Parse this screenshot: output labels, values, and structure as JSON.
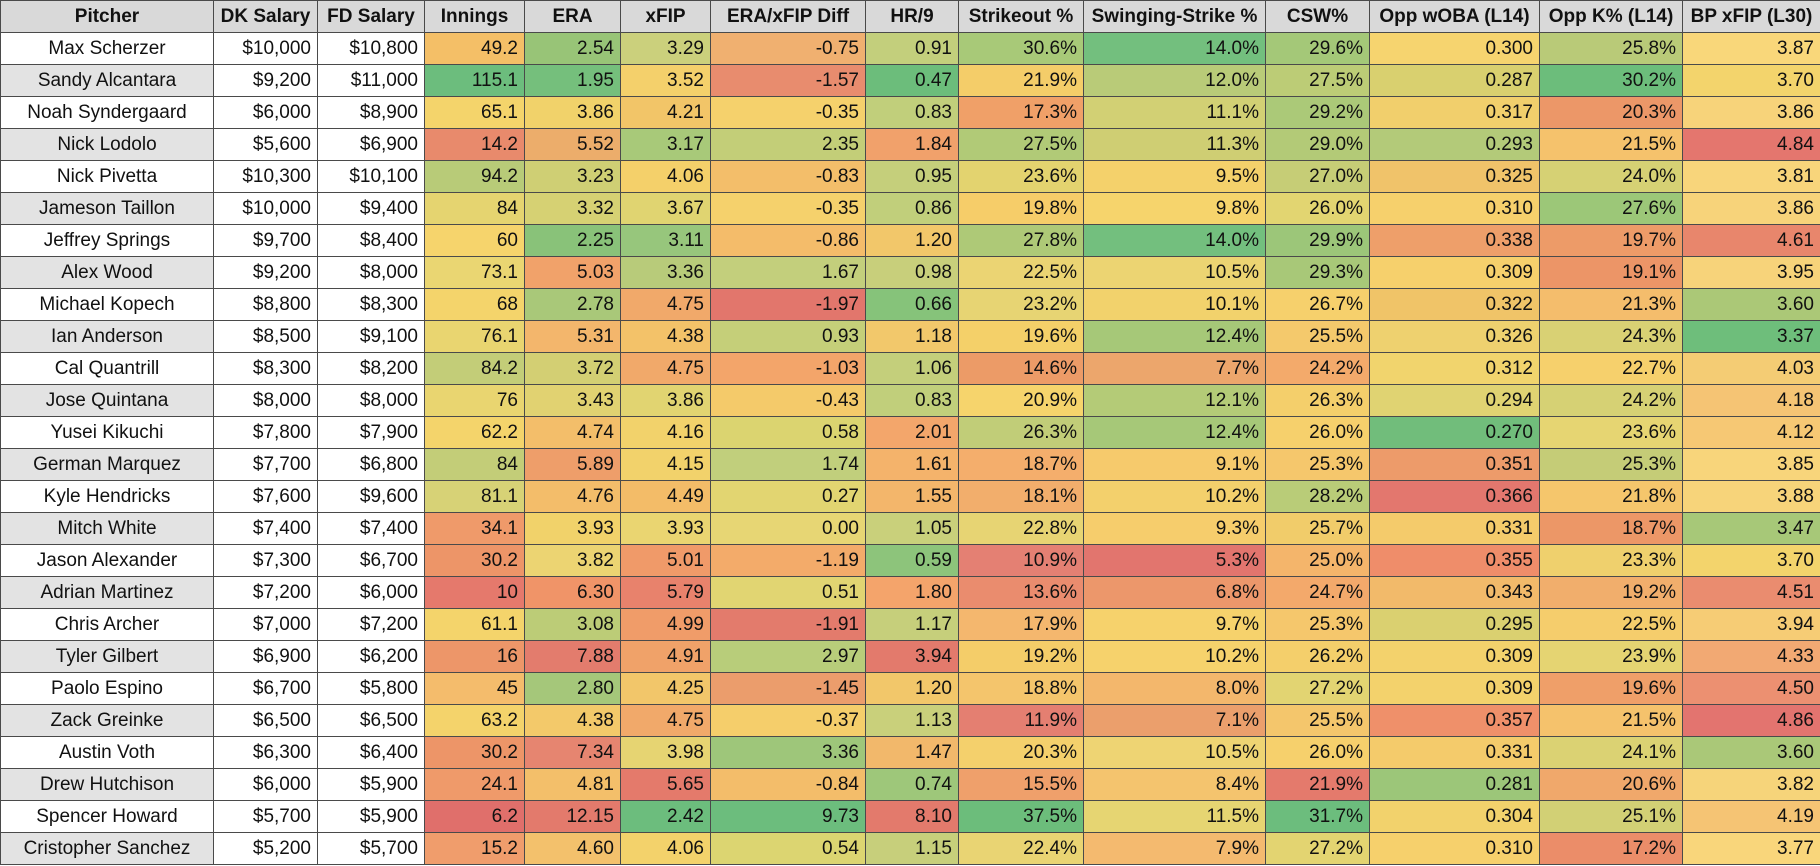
{
  "table": {
    "headers": [
      "Pitcher",
      "DK Salary",
      "FD Salary",
      "Innings",
      "ERA",
      "xFIP",
      "ERA/xFIP Diff",
      "HR/9",
      "Strikeout %",
      "Swinging-Strike %",
      "CSW%",
      "Opp wOBA (L14)",
      "Opp K% (L14)",
      "BP xFIP (L30)"
    ],
    "name_shading": [
      "#ffffff",
      "#e3e3e3"
    ],
    "rows": [
      [
        "Max Scherzer",
        "$10,000",
        "$10,800",
        "49.2",
        "2.54",
        "3.29",
        "-0.75",
        "0.91",
        "30.6%",
        "14.0%",
        "29.6%",
        "0.300",
        "25.8%",
        "3.87"
      ],
      [
        "Sandy Alcantara",
        "$9,200",
        "$11,000",
        "115.1",
        "1.95",
        "3.52",
        "-1.57",
        "0.47",
        "21.9%",
        "12.0%",
        "27.5%",
        "0.287",
        "30.2%",
        "3.70"
      ],
      [
        "Noah Syndergaard",
        "$6,000",
        "$8,900",
        "65.1",
        "3.86",
        "4.21",
        "-0.35",
        "0.83",
        "17.3%",
        "11.1%",
        "29.2%",
        "0.317",
        "20.3%",
        "3.86"
      ],
      [
        "Nick Lodolo",
        "$5,600",
        "$6,900",
        "14.2",
        "5.52",
        "3.17",
        "2.35",
        "1.84",
        "27.5%",
        "11.3%",
        "29.0%",
        "0.293",
        "21.5%",
        "4.84"
      ],
      [
        "Nick Pivetta",
        "$10,300",
        "$10,100",
        "94.2",
        "3.23",
        "4.06",
        "-0.83",
        "0.95",
        "23.6%",
        "9.5%",
        "27.0%",
        "0.325",
        "24.0%",
        "3.81"
      ],
      [
        "Jameson Taillon",
        "$10,000",
        "$9,400",
        "84",
        "3.32",
        "3.67",
        "-0.35",
        "0.86",
        "19.8%",
        "9.8%",
        "26.0%",
        "0.310",
        "27.6%",
        "3.86"
      ],
      [
        "Jeffrey Springs",
        "$9,700",
        "$8,400",
        "60",
        "2.25",
        "3.11",
        "-0.86",
        "1.20",
        "27.8%",
        "14.0%",
        "29.9%",
        "0.338",
        "19.7%",
        "4.61"
      ],
      [
        "Alex Wood",
        "$9,200",
        "$8,000",
        "73.1",
        "5.03",
        "3.36",
        "1.67",
        "0.98",
        "22.5%",
        "10.5%",
        "29.3%",
        "0.309",
        "19.1%",
        "3.95"
      ],
      [
        "Michael Kopech",
        "$8,800",
        "$8,300",
        "68",
        "2.78",
        "4.75",
        "-1.97",
        "0.66",
        "23.2%",
        "10.1%",
        "26.7%",
        "0.322",
        "21.3%",
        "3.60"
      ],
      [
        "Ian Anderson",
        "$8,500",
        "$9,100",
        "76.1",
        "5.31",
        "4.38",
        "0.93",
        "1.18",
        "19.6%",
        "12.4%",
        "25.5%",
        "0.326",
        "24.3%",
        "3.37"
      ],
      [
        "Cal Quantrill",
        "$8,300",
        "$8,200",
        "84.2",
        "3.72",
        "4.75",
        "-1.03",
        "1.06",
        "14.6%",
        "7.7%",
        "24.2%",
        "0.312",
        "22.7%",
        "4.03"
      ],
      [
        "Jose Quintana",
        "$8,000",
        "$8,000",
        "76",
        "3.43",
        "3.86",
        "-0.43",
        "0.83",
        "20.9%",
        "12.1%",
        "26.3%",
        "0.294",
        "24.2%",
        "4.18"
      ],
      [
        "Yusei Kikuchi",
        "$7,800",
        "$7,900",
        "62.2",
        "4.74",
        "4.16",
        "0.58",
        "2.01",
        "26.3%",
        "12.4%",
        "26.0%",
        "0.270",
        "23.6%",
        "4.12"
      ],
      [
        "German Marquez",
        "$7,700",
        "$6,800",
        "84",
        "5.89",
        "4.15",
        "1.74",
        "1.61",
        "18.7%",
        "9.1%",
        "25.3%",
        "0.351",
        "25.3%",
        "3.85"
      ],
      [
        "Kyle Hendricks",
        "$7,600",
        "$9,600",
        "81.1",
        "4.76",
        "4.49",
        "0.27",
        "1.55",
        "18.1%",
        "10.2%",
        "28.2%",
        "0.366",
        "21.8%",
        "3.88"
      ],
      [
        "Mitch White",
        "$7,400",
        "$7,400",
        "34.1",
        "3.93",
        "3.93",
        "0.00",
        "1.05",
        "22.8%",
        "9.3%",
        "25.7%",
        "0.331",
        "18.7%",
        "3.47"
      ],
      [
        "Jason Alexander",
        "$7,300",
        "$6,700",
        "30.2",
        "3.82",
        "5.01",
        "-1.19",
        "0.59",
        "10.9%",
        "5.3%",
        "25.0%",
        "0.355",
        "23.3%",
        "3.70"
      ],
      [
        "Adrian Martinez",
        "$7,200",
        "$6,000",
        "10",
        "6.30",
        "5.79",
        "0.51",
        "1.80",
        "13.6%",
        "6.8%",
        "24.7%",
        "0.343",
        "19.2%",
        "4.51"
      ],
      [
        "Chris Archer",
        "$7,000",
        "$7,200",
        "61.1",
        "3.08",
        "4.99",
        "-1.91",
        "1.17",
        "17.9%",
        "9.7%",
        "25.3%",
        "0.295",
        "22.5%",
        "3.94"
      ],
      [
        "Tyler Gilbert",
        "$6,900",
        "$6,200",
        "16",
        "7.88",
        "4.91",
        "2.97",
        "3.94",
        "19.2%",
        "10.2%",
        "26.2%",
        "0.309",
        "23.9%",
        "4.33"
      ],
      [
        "Paolo Espino",
        "$6,700",
        "$5,800",
        "45",
        "2.80",
        "4.25",
        "-1.45",
        "1.20",
        "18.8%",
        "8.0%",
        "27.2%",
        "0.309",
        "19.6%",
        "4.50"
      ],
      [
        "Zack Greinke",
        "$6,500",
        "$6,500",
        "63.2",
        "4.38",
        "4.75",
        "-0.37",
        "1.13",
        "11.9%",
        "7.1%",
        "25.5%",
        "0.357",
        "21.5%",
        "4.86"
      ],
      [
        "Austin Voth",
        "$6,300",
        "$6,400",
        "30.2",
        "7.34",
        "3.98",
        "3.36",
        "1.47",
        "20.3%",
        "10.5%",
        "26.0%",
        "0.331",
        "24.1%",
        "3.60"
      ],
      [
        "Drew Hutchison",
        "$6,000",
        "$5,900",
        "24.1",
        "4.81",
        "5.65",
        "-0.84",
        "0.74",
        "15.5%",
        "8.4%",
        "21.9%",
        "0.281",
        "20.6%",
        "3.82"
      ],
      [
        "Spencer Howard",
        "$5,700",
        "$5,900",
        "6.2",
        "12.15",
        "2.42",
        "9.73",
        "8.10",
        "37.5%",
        "11.5%",
        "31.7%",
        "0.304",
        "25.1%",
        "4.19"
      ],
      [
        "Cristopher Sanchez",
        "$5,200",
        "$5,700",
        "15.2",
        "4.60",
        "4.06",
        "0.54",
        "1.15",
        "22.4%",
        "7.9%",
        "27.2%",
        "0.310",
        "17.2%",
        "3.77"
      ]
    ],
    "colors": [
      [
        "#ffffff",
        "#ffffff",
        "#ffffff",
        "#f4bf67",
        "#98c477",
        "#cbd07c",
        "#f0b070",
        "#c3cf7c",
        "#a8c978",
        "#73bf7e",
        "#a4c878",
        "#f6d46f",
        "#b9ca78",
        "#f9d77a"
      ],
      [
        "#e3e3e3",
        "#ffffff",
        "#ffffff",
        "#6cbd7d",
        "#75bf7c",
        "#f4d06b",
        "#e88c6e",
        "#6cbd7b",
        "#f4cd69",
        "#b9cb78",
        "#bccc76",
        "#d9d06f",
        "#6cbd7b",
        "#f3d46c"
      ],
      [
        "#ffffff",
        "#ffffff",
        "#ffffff",
        "#f4d46b",
        "#f1d26a",
        "#f2c568",
        "#f5d16c",
        "#c1cf7b",
        "#f0a068",
        "#d2d074",
        "#abc978",
        "#f1cf6c",
        "#ec9768",
        "#f7d37a"
      ],
      [
        "#e3e3e3",
        "#ffffff",
        "#ffffff",
        "#e88a6c",
        "#ecad6b",
        "#a8c979",
        "#c3ce78",
        "#f1a16b",
        "#b1ca77",
        "#cfce73",
        "#b3ca77",
        "#b3ca79",
        "#f5c26c",
        "#e4766e"
      ],
      [
        "#ffffff",
        "#ffffff",
        "#ffffff",
        "#b8cb78",
        "#cfcf74",
        "#f4d06a",
        "#f3be6a",
        "#c5cf7b",
        "#e3d36f",
        "#f4d16b",
        "#c6cd76",
        "#f0c36a",
        "#d6d174",
        "#f8d57b"
      ],
      [
        "#e3e3e3",
        "#ffffff",
        "#ffffff",
        "#e5d470",
        "#d6d173",
        "#e0d471",
        "#f5d16c",
        "#c1cf7b",
        "#f6cd69",
        "#f6d46c",
        "#e2d571",
        "#f6d06c",
        "#9cc778",
        "#f7d37a"
      ],
      [
        "#ffffff",
        "#ffffff",
        "#ffffff",
        "#f6d46c",
        "#89c279",
        "#97c67c",
        "#f4bc6a",
        "#f2c76a",
        "#aec977",
        "#73bf7e",
        "#9cc679",
        "#ee9f6a",
        "#ed9b68",
        "#e8866c"
      ],
      [
        "#e3e3e3",
        "#ffffff",
        "#ffffff",
        "#ead672",
        "#f1a26a",
        "#b8cb7a",
        "#c3cf7c",
        "#c8cf7b",
        "#ebd473",
        "#ecd472",
        "#a8c878",
        "#f6d06c",
        "#ec9567",
        "#f7d37a"
      ],
      [
        "#ffffff",
        "#ffffff",
        "#ffffff",
        "#f4d46b",
        "#a9c879",
        "#f1a96a",
        "#e2766c",
        "#86c37a",
        "#e7d473",
        "#f2d26c",
        "#f6d06c",
        "#f0c468",
        "#f4bd6c",
        "#abc877"
      ],
      [
        "#e3e3e3",
        "#ffffff",
        "#ffffff",
        "#e9d570",
        "#f3b66c",
        "#f3c269",
        "#c5cf79",
        "#f2c86b",
        "#f4d069",
        "#a6c878",
        "#f4c96c",
        "#eed16f",
        "#d9d174",
        "#6ebe7b"
      ],
      [
        "#ffffff",
        "#ffffff",
        "#ffffff",
        "#c3cd78",
        "#d3cf73",
        "#f1a96a",
        "#f3a56a",
        "#c4cf7b",
        "#ec9b67",
        "#eca66c",
        "#f3aa6b",
        "#f1d46d",
        "#f6d06c",
        "#f4cc74"
      ],
      [
        "#e3e3e3",
        "#ffffff",
        "#ffffff",
        "#e9d570",
        "#e1d271",
        "#e1d471",
        "#f4ca6a",
        "#c1cf7b",
        "#f6d46c",
        "#b4cb77",
        "#f4cf6b",
        "#e0d372",
        "#d6d174",
        "#f5c474"
      ],
      [
        "#ffffff",
        "#ffffff",
        "#ffffff",
        "#f4d46b",
        "#f3be6a",
        "#f2d26b",
        "#dbd470",
        "#f3a66b",
        "#c1cd78",
        "#a6c878",
        "#f6d06c",
        "#71bd7b",
        "#e6d572",
        "#f6c874"
      ],
      [
        "#e3e3e3",
        "#ffffff",
        "#ffffff",
        "#c3cd78",
        "#ee9e6a",
        "#f2d26b",
        "#c1cf7c",
        "#f4b36b",
        "#f4ae6c",
        "#f6ca6c",
        "#f5c76c",
        "#ed9b6a",
        "#c5cc77",
        "#f8d57b"
      ],
      [
        "#ffffff",
        "#ffffff",
        "#ffffff",
        "#d7d276",
        "#f3bd6a",
        "#f3bc68",
        "#e2d571",
        "#f3b66b",
        "#f2ae6c",
        "#f3d06c",
        "#b9cc78",
        "#e3776e",
        "#f5c66c",
        "#f7d47a"
      ],
      [
        "#e3e3e3",
        "#ffffff",
        "#ffffff",
        "#ef9a6a",
        "#f1d26a",
        "#ead571",
        "#e7d674",
        "#c9d07b",
        "#e7d473",
        "#f6cd6c",
        "#f1cc6a",
        "#f4cb6b",
        "#ec9767",
        "#a7c878"
      ],
      [
        "#ffffff",
        "#ffffff",
        "#ffffff",
        "#ed9568",
        "#ecd472",
        "#f09a69",
        "#f3ab6a",
        "#8dc47b",
        "#e48073",
        "#e2756e",
        "#f4b56b",
        "#ef8d6a",
        "#efd06d",
        "#f3d46c"
      ],
      [
        "#e3e3e3",
        "#ffffff",
        "#ffffff",
        "#e5796c",
        "#f09468",
        "#e8826c",
        "#e1d572",
        "#f4a46b",
        "#ea8c6e",
        "#ec976b",
        "#f3a96b",
        "#f2ba6a",
        "#f1ae6c",
        "#ea8c6f"
      ],
      [
        "#ffffff",
        "#ffffff",
        "#ffffff",
        "#f4d46b",
        "#bccc77",
        "#f09c69",
        "#e37b6c",
        "#c6cf7b",
        "#f4b76e",
        "#f6d26c",
        "#f5c76c",
        "#dad070",
        "#f5cd6c",
        "#f6cc75"
      ],
      [
        "#e3e3e3",
        "#ffffff",
        "#ffffff",
        "#ed9669",
        "#e37c6d",
        "#f0a269",
        "#b8cd7a",
        "#e37a6c",
        "#f4cd69",
        "#f6d26c",
        "#f4cf6b",
        "#f3d26c",
        "#e5d472",
        "#f2a973"
      ],
      [
        "#ffffff",
        "#ffffff",
        "#ffffff",
        "#f4bc6c",
        "#a5c77a",
        "#f2c66a",
        "#eb9d6c",
        "#f2c76a",
        "#f4c56c",
        "#f3b76c",
        "#e2d472",
        "#f3d26c",
        "#ef9f69",
        "#ec9071"
      ],
      [
        "#e3e3e3",
        "#ffffff",
        "#ffffff",
        "#f4d36b",
        "#f3c96a",
        "#f1a96a",
        "#f5ce6b",
        "#c9d07b",
        "#e47f71",
        "#eb9f6c",
        "#f4c66c",
        "#ef906a",
        "#f5c26c",
        "#e3746f"
      ],
      [
        "#ffffff",
        "#ffffff",
        "#ffffff",
        "#ed9568",
        "#e68570",
        "#e6d472",
        "#9ec67a",
        "#f2b86b",
        "#f4d06c",
        "#eed473",
        "#f6d06c",
        "#f4cb6b",
        "#dbd273",
        "#aac878"
      ],
      [
        "#e3e3e3",
        "#ffffff",
        "#ffffff",
        "#ef9a6a",
        "#f3bf6a",
        "#e47a6b",
        "#f3bd6a",
        "#9ec77a",
        "#efa06b",
        "#f4c46e",
        "#e47a6c",
        "#9cc679",
        "#f0a86b",
        "#f6d47a"
      ],
      [
        "#ffffff",
        "#ffffff",
        "#ffffff",
        "#e06f6b",
        "#e37a6c",
        "#6cbd7d",
        "#6cbd7d",
        "#e37a6c",
        "#6cbd7b",
        "#e6d572",
        "#6cbd7d",
        "#f2d26c",
        "#d2d075",
        "#f5c474"
      ],
      [
        "#e3e3e3",
        "#ffffff",
        "#ffffff",
        "#f09d6c",
        "#f3c16c",
        "#f3d26b",
        "#dcd571",
        "#c7cf7b",
        "#e9d473",
        "#f4ba6f",
        "#e3d471",
        "#f6d06c",
        "#eb8d69",
        "#f9d67b"
      ]
    ]
  }
}
